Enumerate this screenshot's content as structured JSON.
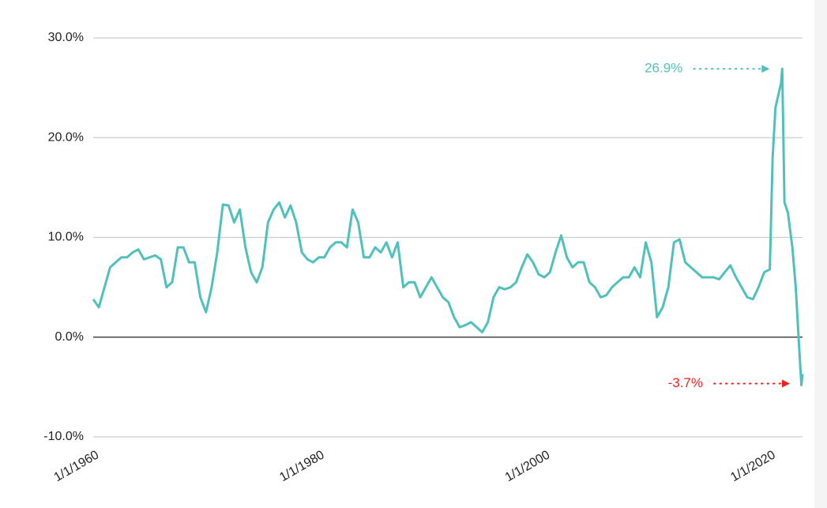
{
  "chart_data": {
    "type": "line",
    "color": "#4fc1bd",
    "x": [
      1960,
      1960.5,
      1961,
      1961.5,
      1962,
      1962.5,
      1963,
      1963.5,
      1964,
      1964.5,
      1965,
      1965.5,
      1966,
      1966.5,
      1967,
      1967.5,
      1968,
      1968.5,
      1969,
      1969.5,
      1970,
      1970.5,
      1971,
      1971.5,
      1972,
      1972.5,
      1973,
      1973.5,
      1974,
      1974.5,
      1975,
      1975.5,
      1976,
      1976.5,
      1977,
      1977.5,
      1978,
      1978.5,
      1979,
      1979.5,
      1980,
      1980.5,
      1981,
      1981.5,
      1982,
      1982.5,
      1983,
      1983.5,
      1984,
      1984.5,
      1985,
      1985.5,
      1986,
      1986.5,
      1987,
      1987.5,
      1988,
      1988.5,
      1989,
      1989.5,
      1990,
      1990.5,
      1991,
      1991.5,
      1992,
      1992.5,
      1993,
      1993.5,
      1994,
      1994.5,
      1995,
      1995.5,
      1996,
      1996.5,
      1997,
      1997.5,
      1998,
      1998.5,
      1999,
      1999.5,
      2000,
      2000.5,
      2001,
      2001.5,
      2002,
      2002.5,
      2003,
      2003.5,
      2004,
      2004.5,
      2005,
      2005.5,
      2006,
      2006.5,
      2007,
      2007.5,
      2008,
      2008.5,
      2009,
      2009.5,
      2010,
      2010.5,
      2011,
      2011.5,
      2012,
      2012.5,
      2013,
      2013.5,
      2014,
      2014.5,
      2015,
      2015.5,
      2016,
      2016.5,
      2017,
      2017.5,
      2018,
      2018.5,
      2019,
      2019.5,
      2020,
      2020.25,
      2020.5,
      2021,
      2021.1,
      2021.3,
      2021.6,
      2022,
      2022.3,
      2022.6,
      2022.8,
      2022.9
    ],
    "values": [
      3.8,
      3,
      5,
      7,
      7.5,
      8,
      8,
      8.5,
      8.8,
      7.8,
      8,
      8.2,
      7.8,
      5,
      5.5,
      9,
      9,
      7.5,
      7.5,
      4,
      2.5,
      5,
      8.5,
      13.3,
      13.2,
      11.5,
      12.8,
      9,
      6.5,
      5.5,
      7,
      11.5,
      12.8,
      13.5,
      12,
      13.2,
      11.5,
      8.5,
      7.8,
      7.5,
      8,
      8,
      9,
      9.5,
      9.5,
      9,
      12.8,
      11.5,
      8,
      8,
      9,
      8.5,
      9.5,
      8,
      9.5,
      5,
      5.5,
      5.5,
      4,
      5,
      6,
      5,
      4,
      3.5,
      2,
      1,
      1.2,
      1.5,
      1,
      0.5,
      1.5,
      4,
      5,
      4.8,
      5,
      5.5,
      7,
      8.3,
      7.5,
      6.3,
      6,
      6.5,
      8.5,
      10.2,
      8,
      7,
      7.5,
      7.5,
      5.5,
      5,
      4,
      4.2,
      5,
      5.5,
      6,
      6,
      7,
      6,
      9.5,
      7.5,
      2,
      3,
      5,
      9.5,
      9.8,
      7.5,
      7,
      6.5,
      6,
      6,
      6,
      5.8,
      6.5,
      7.2,
      6,
      5,
      4,
      3.8,
      5,
      6.5,
      6.8,
      18,
      23,
      25.5,
      26.9,
      13.5,
      12.5,
      9,
      5,
      -1,
      -4.8,
      -3.7
    ],
    "xlim": [
      1960,
      2022.9
    ],
    "xticks": [
      {
        "value": 1960,
        "label": "1/1/1960"
      },
      {
        "value": 1980,
        "label": "1/1/1980"
      },
      {
        "value": 2000,
        "label": "1/1/2000"
      },
      {
        "value": 2020,
        "label": "1/1/2020"
      }
    ],
    "ylim": [
      -10,
      30
    ],
    "yticks": [
      {
        "value": -10,
        "label": "-10.0%"
      },
      {
        "value": 0,
        "label": "0.0%"
      },
      {
        "value": 10,
        "label": "10.0%"
      },
      {
        "value": 20,
        "label": "20.0%"
      },
      {
        "value": 30,
        "label": "30.0%"
      }
    ],
    "grid": true,
    "annotations": [
      {
        "text": "26.9%",
        "x": 2021.1,
        "y": 26.9,
        "color": "#4fc1bd"
      },
      {
        "text": "-3.7%",
        "x": 2022.9,
        "y": -3.7,
        "color": "#f0201e"
      }
    ]
  }
}
